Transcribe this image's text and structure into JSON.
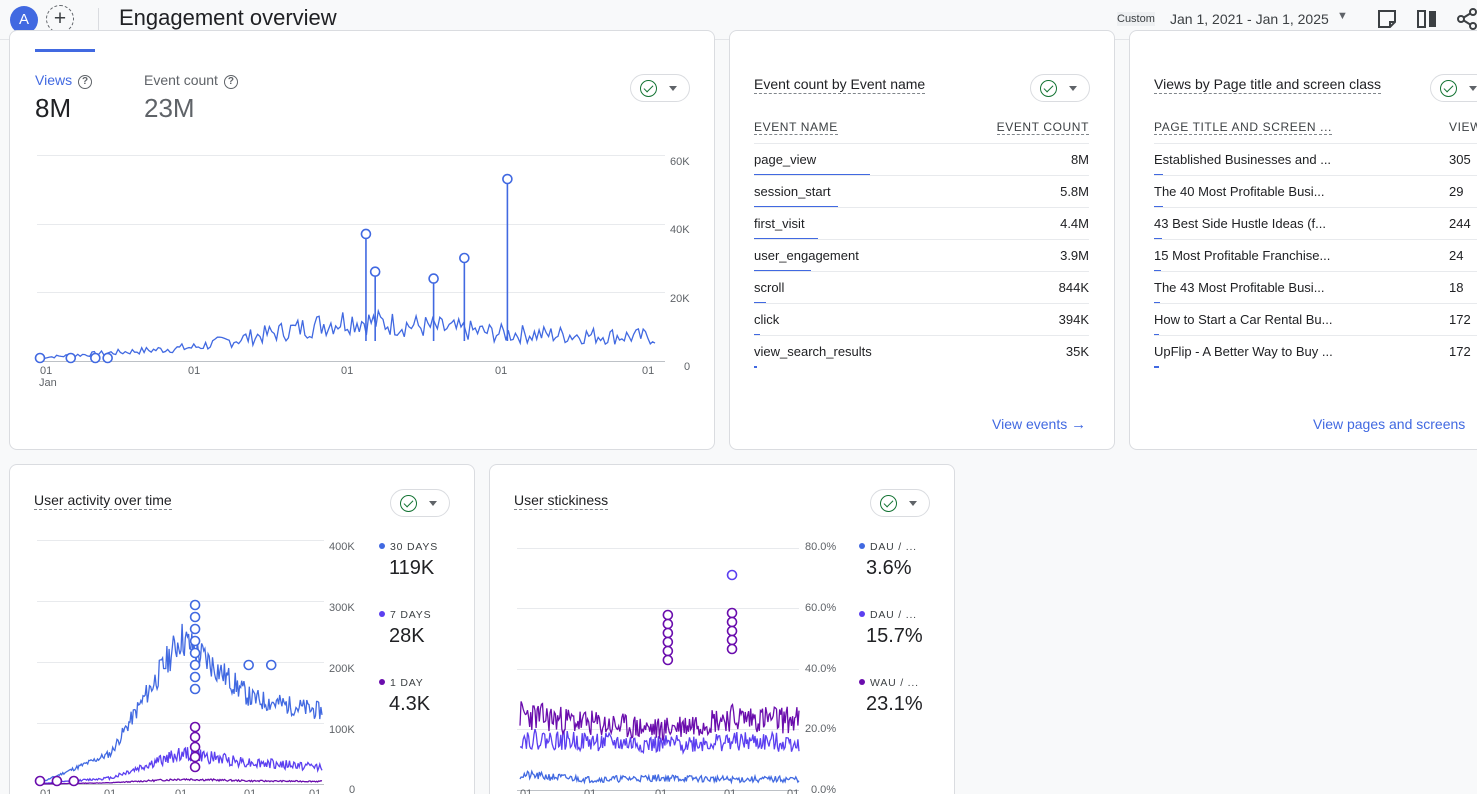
{
  "header": {
    "avatar_letter": "A",
    "add_symbol": "+",
    "title": "Engagement overview",
    "custom_label": "Custom",
    "date_range": "Jan 1, 2021 - Jan 1, 2025"
  },
  "colors": {
    "accent": "#4169e1",
    "purple": "#5b3ff0",
    "dark_purple": "#6a0dad",
    "check_green": "#137333"
  },
  "icons": [
    "check-circle-icon",
    "help-icon",
    "arrow-right-icon",
    "chevron-down-icon",
    "note-icon",
    "compare-icon",
    "share-icon"
  ],
  "views_card": {
    "metrics": [
      {
        "label": "Views",
        "value": "8M"
      },
      {
        "label": "Event count",
        "value": "23M"
      }
    ],
    "y_ticks": [
      "60K",
      "40K",
      "20K",
      "0"
    ],
    "x_ticks": [
      "01",
      "01",
      "01",
      "01",
      "01"
    ],
    "x_sub": "Jan"
  },
  "events_card": {
    "title": "Event count by Event name",
    "col_name": "EVENT NAME",
    "col_value": "EVENT COUNT",
    "rows": [
      {
        "name": "page_view",
        "value": "8M",
        "share": 1.0
      },
      {
        "name": "session_start",
        "value": "5.8M",
        "share": 0.725
      },
      {
        "name": "first_visit",
        "value": "4.4M",
        "share": 0.55
      },
      {
        "name": "user_engagement",
        "value": "3.9M",
        "share": 0.49
      },
      {
        "name": "scroll",
        "value": "844K",
        "share": 0.105
      },
      {
        "name": "click",
        "value": "394K",
        "share": 0.05
      },
      {
        "name": "view_search_results",
        "value": "35K",
        "share": 0.005
      }
    ],
    "link": "View events"
  },
  "pages_card": {
    "title": "Views by Page title and screen class",
    "col_name": "PAGE TITLE AND SCREEN ...",
    "col_value": "VIEW",
    "rows": [
      {
        "name": "Established Businesses and ...",
        "value": "305",
        "share": 0.08
      },
      {
        "name": "The 40 Most Profitable Busi...",
        "value": "29",
        "share": 0.075
      },
      {
        "name": "43 Best Side Hustle Ideas (f...",
        "value": "244",
        "share": 0.07
      },
      {
        "name": "15 Most Profitable Franchise...",
        "value": "24",
        "share": 0.06
      },
      {
        "name": "The 43 Most Profitable Busi...",
        "value": "18",
        "share": 0.05
      },
      {
        "name": "How to Start a Car Rental Bu...",
        "value": "172",
        "share": 0.045
      },
      {
        "name": "UpFlip - A Better Way to Buy ...",
        "value": "172",
        "share": 0.045
      }
    ],
    "link": "View pages and screens"
  },
  "activity_card": {
    "title": "User activity over time",
    "y_ticks": [
      "400K",
      "300K",
      "200K",
      "100K",
      "0"
    ],
    "x_ticks": [
      "01",
      "01",
      "01",
      "01",
      "01"
    ],
    "legend": [
      {
        "label": "30 DAYS",
        "value": "119K",
        "color": "#4169e1"
      },
      {
        "label": "7 DAYS",
        "value": "28K",
        "color": "#5b3ff0"
      },
      {
        "label": "1 DAY",
        "value": "4.3K",
        "color": "#6a0dad"
      }
    ]
  },
  "stickiness_card": {
    "title": "User stickiness",
    "y_ticks": [
      "80.0%",
      "60.0%",
      "40.0%",
      "20.0%",
      "0.0%"
    ],
    "x_ticks": [
      "01",
      "01",
      "01",
      "01",
      "01"
    ],
    "legend": [
      {
        "label": "DAU / ...",
        "value": "3.6%",
        "color": "#4169e1"
      },
      {
        "label": "DAU / ...",
        "value": "15.7%",
        "color": "#5b3ff0"
      },
      {
        "label": "WAU / ...",
        "value": "23.1%",
        "color": "#6a0dad"
      }
    ]
  },
  "chart_data": [
    {
      "type": "line",
      "ylim": [
        0,
        60000
      ],
      "x": [
        "Jan 2021",
        "Jan 2022",
        "Jan 2023",
        "Jan 2024",
        "Jan 2025"
      ],
      "series": [
        {
          "name": "Views",
          "values": [
            1000,
            4000,
            12000,
            8000,
            7000
          ]
        }
      ],
      "peaks": [
        37000,
        26000,
        24000,
        30000,
        53000
      ]
    },
    {
      "type": "line",
      "ylim": [
        0,
        400000
      ],
      "x": [
        "Jan 2021",
        "Jan 2022",
        "Jan 2023",
        "Jan 2024",
        "Jan 2025"
      ],
      "series": [
        {
          "name": "30 DAYS",
          "values": [
            2000,
            50000,
            240000,
            140000,
            119000
          ]
        },
        {
          "name": "7 DAYS",
          "values": [
            500,
            10000,
            50000,
            35000,
            28000
          ]
        },
        {
          "name": "1 DAY",
          "values": [
            100,
            2000,
            8000,
            5000,
            4300
          ]
        }
      ]
    },
    {
      "type": "line",
      "ylim": [
        0,
        80
      ],
      "x": [
        "Jan 2021",
        "Jan 2022",
        "Jan 2023",
        "Jan 2024",
        "Jan 2025"
      ],
      "series": [
        {
          "name": "DAU / ...",
          "values": [
            5,
            3.5,
            4,
            3.5,
            3.6
          ]
        },
        {
          "name": "DAU / ...",
          "values": [
            17,
            16,
            15,
            16,
            15.7
          ]
        },
        {
          "name": "WAU / ...",
          "values": [
            25,
            22,
            20,
            24,
            23.1
          ]
        }
      ]
    }
  ]
}
